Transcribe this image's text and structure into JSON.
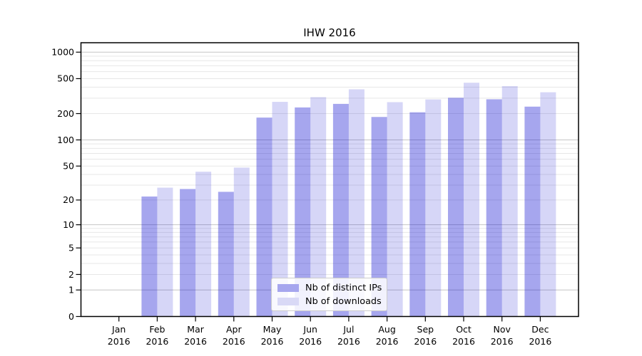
{
  "chart_data": {
    "type": "bar",
    "title": "IHW 2016",
    "scale": "log1p",
    "grid": "on",
    "legend_position": "lower center",
    "ylim": [
      0,
      1280
    ],
    "yticks": [
      0,
      1,
      2,
      5,
      10,
      20,
      50,
      100,
      200,
      500,
      1000
    ],
    "major_grid_values": [
      1,
      10,
      100,
      1000
    ],
    "categories": [
      {
        "month": "Jan",
        "year": "2016"
      },
      {
        "month": "Feb",
        "year": "2016"
      },
      {
        "month": "Mar",
        "year": "2016"
      },
      {
        "month": "Apr",
        "year": "2016"
      },
      {
        "month": "May",
        "year": "2016"
      },
      {
        "month": "Jun",
        "year": "2016"
      },
      {
        "month": "Jul",
        "year": "2016"
      },
      {
        "month": "Aug",
        "year": "2016"
      },
      {
        "month": "Sep",
        "year": "2016"
      },
      {
        "month": "Oct",
        "year": "2016"
      },
      {
        "month": "Nov",
        "year": "2016"
      },
      {
        "month": "Dec",
        "year": "2016"
      }
    ],
    "series": [
      {
        "name": "Nb of distinct IPs",
        "color": "#0000cd",
        "fill_opacity": 0.35,
        "appearance_hex": "#a6a6ee",
        "values": [
          0,
          22,
          27,
          25,
          180,
          235,
          258,
          183,
          207,
          303,
          291,
          240
        ]
      },
      {
        "name": "Nb of downloads",
        "color": "#0000cd",
        "fill_opacity": 0.16,
        "appearance_hex": "#d9d9f6",
        "values": [
          0,
          28,
          43,
          48,
          272,
          308,
          378,
          270,
          290,
          449,
          411,
          350
        ]
      }
    ],
    "colors": {
      "major_grid": "#c6c6c6",
      "minor_grid": "#e7e7e7",
      "axis": "#000000",
      "text": "#000000",
      "legend_border": "#cccccc"
    }
  }
}
